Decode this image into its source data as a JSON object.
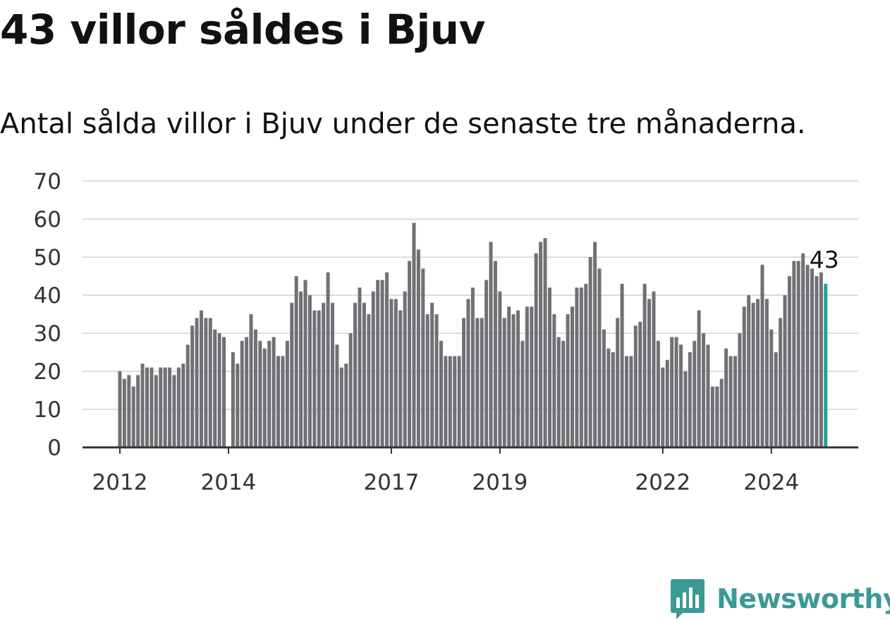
{
  "title": "43 villor såldes i Bjuv",
  "subtitle": "Antal sålda villor i Bjuv under de senaste tre månaderna.",
  "brand": {
    "name": "Newsworthy",
    "color": "#3b9a94",
    "icon": "newsworthy-logo-icon"
  },
  "colors": {
    "bar": "#707075",
    "highlight": "#1aa39a",
    "grid": "#dddddd",
    "axis": "#333333"
  },
  "chart_data": {
    "type": "bar",
    "xlabel": "",
    "ylabel": "",
    "ylim": [
      0,
      70
    ],
    "yticks": [
      0,
      10,
      20,
      30,
      40,
      50,
      60,
      70
    ],
    "xtick_labels": [
      "2012",
      "2014",
      "2017",
      "2019",
      "2022",
      "2024"
    ],
    "grid": true,
    "start": "2012-01",
    "frequency": "month",
    "values": [
      20,
      18,
      19,
      16,
      19,
      22,
      21,
      21,
      19,
      21,
      21,
      21,
      19,
      21,
      22,
      27,
      32,
      34,
      36,
      34,
      34,
      31,
      30,
      29,
      0,
      25,
      22,
      28,
      29,
      35,
      31,
      28,
      26,
      28,
      29,
      24,
      24,
      28,
      38,
      45,
      41,
      44,
      40,
      36,
      36,
      38,
      46,
      38,
      27,
      21,
      22,
      30,
      38,
      42,
      38,
      35,
      41,
      44,
      44,
      46,
      39,
      39,
      36,
      41,
      49,
      59,
      52,
      47,
      35,
      38,
      35,
      28,
      24,
      24,
      24,
      24,
      34,
      39,
      42,
      34,
      34,
      44,
      54,
      49,
      41,
      34,
      37,
      35,
      36,
      28,
      37,
      37,
      51,
      54,
      55,
      42,
      35,
      29,
      28,
      35,
      37,
      42,
      42,
      43,
      50,
      54,
      47,
      31,
      26,
      25,
      34,
      43,
      24,
      24,
      32,
      33,
      43,
      39,
      41,
      28,
      21,
      23,
      29,
      29,
      27,
      20,
      25,
      28,
      36,
      30,
      27,
      16,
      16,
      18,
      26,
      24,
      24,
      30,
      37,
      40,
      38,
      39,
      48,
      39,
      31,
      25,
      34,
      40,
      45,
      49,
      49,
      51,
      48,
      47,
      45,
      46,
      43
    ],
    "last_value_label": "43"
  }
}
